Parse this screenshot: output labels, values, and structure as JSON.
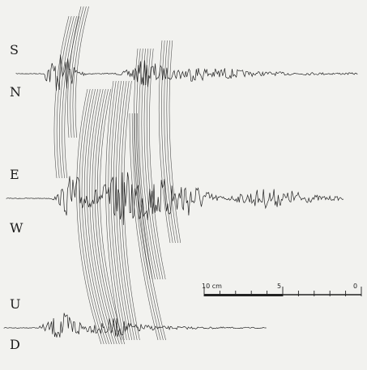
{
  "components": {
    "ns": {
      "top": "S",
      "bottom": "N"
    },
    "ew": {
      "top": "E",
      "bottom": "W"
    },
    "ud": {
      "top": "U",
      "bottom": "D"
    }
  },
  "scale": {
    "labels": [
      "10 cm",
      "5",
      "0"
    ]
  },
  "colors": {
    "paper": "#f2f2ef",
    "ink": "#222222"
  }
}
